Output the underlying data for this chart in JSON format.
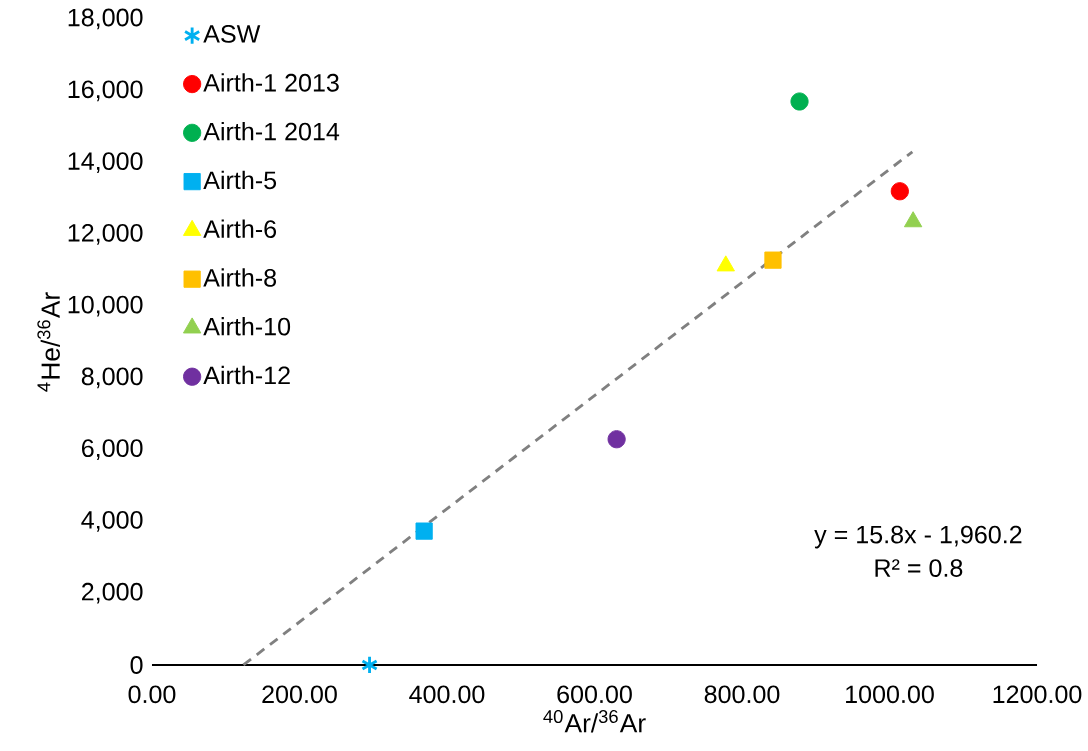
{
  "chart_data": {
    "type": "scatter",
    "xlabel": "$^{40}$Ar/$^{36}$Ar",
    "ylabel": "$^{4}$He/$^{36}$Ar",
    "series": [
      {
        "name": "ASW",
        "color": "#00b0f0",
        "marker": "cross",
        "x": [
          295
        ],
        "values": [
          0
        ]
      },
      {
        "name": "Airth-1 2013",
        "color": "#ff0000",
        "marker": "circle",
        "x": [
          1014
        ],
        "values": [
          13200
        ]
      },
      {
        "name": "Airth-1 2014",
        "color": "#00b050",
        "marker": "circle",
        "x": [
          878
        ],
        "values": [
          15700
        ]
      },
      {
        "name": "Airth-5",
        "color": "#00b0f0",
        "marker": "square",
        "x": [
          369
        ],
        "values": [
          3730
        ]
      },
      {
        "name": "Airth-6",
        "color": "#ffff00",
        "marker": "triangle",
        "x": [
          778
        ],
        "values": [
          11120
        ]
      },
      {
        "name": "Airth-8",
        "color": "#ffc000",
        "marker": "square",
        "x": [
          842
        ],
        "values": [
          11280
        ]
      },
      {
        "name": "Airth-10",
        "color": "#92d050",
        "marker": "triangle",
        "x": [
          1032
        ],
        "values": [
          12350
        ]
      },
      {
        "name": "Airth-12",
        "color": "#7030a0",
        "marker": "circle",
        "x": [
          630
        ],
        "values": [
          6290
        ]
      },
      {
        "type": "line",
        "color": "#808080",
        "line_style": "dashed",
        "marker": "none",
        "x": [
          124,
          1031
        ],
        "values": [
          0,
          14300
        ]
      }
    ],
    "xlim": [
      0,
      1200
    ],
    "ylim": [
      0,
      18000
    ],
    "xticks": [
      {
        "value": 0,
        "label": "0.00"
      },
      {
        "value": 200,
        "label": "200.00"
      },
      {
        "value": 400,
        "label": "400.00"
      },
      {
        "value": 600,
        "label": "600.00"
      },
      {
        "value": 800,
        "label": "800.00"
      },
      {
        "value": 1000,
        "label": "1000.00"
      },
      {
        "value": 1200,
        "label": "1200.00"
      }
    ],
    "yticks": [
      0,
      {
        "value": 2000,
        "label": "2,000"
      },
      {
        "value": 4000,
        "label": "4,000"
      },
      {
        "value": 6000,
        "label": "6,000"
      },
      {
        "value": 8000,
        "label": "8,000"
      },
      {
        "value": 10000,
        "label": "10,000"
      },
      {
        "value": 12000,
        "label": "12,000"
      },
      {
        "value": 14000,
        "label": "14,000"
      },
      {
        "value": 16000,
        "label": "16,000"
      },
      {
        "value": 18000,
        "label": "18,000"
      }
    ],
    "grid": false,
    "legend": "top left",
    "annotations": [
      "y = 15.8x - 1,960.2",
      "R² = 0.8"
    ]
  }
}
